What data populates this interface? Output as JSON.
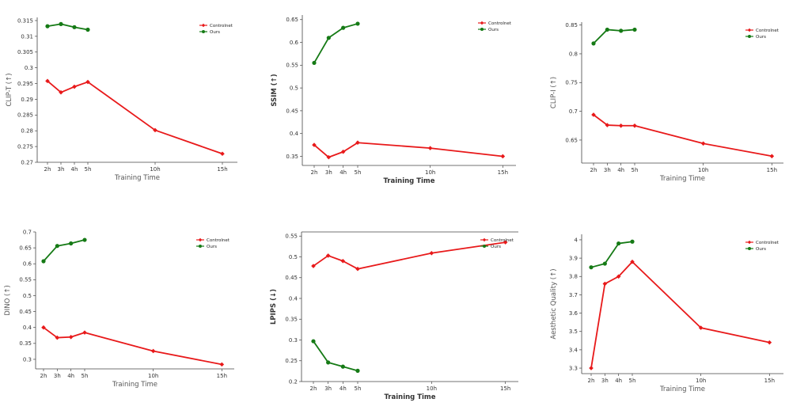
{
  "chart_data": [
    {
      "type": "line",
      "xlabel": "Training Time",
      "ylabel": "CLIP-T (↑)",
      "x": [
        "2h",
        "3h",
        "4h",
        "5h",
        "10h",
        "15h"
      ],
      "ylim": [
        0.27,
        0.316
      ],
      "yticks": [
        "0.27",
        "0.275",
        "0.28",
        "0.285",
        "0.29",
        "0.295",
        "0.3",
        "0.305",
        "0.31",
        "0.315"
      ],
      "legend": "top-right",
      "grid": false,
      "series": [
        {
          "name": "Controlnet",
          "color": "#e8191a",
          "values": [
            0.2958,
            0.2922,
            0.294,
            0.2955,
            0.2802,
            0.2727
          ]
        },
        {
          "name": "Ours",
          "color": "#157a15",
          "values": [
            0.3132,
            0.3139,
            0.3129,
            0.3121,
            null,
            null
          ]
        }
      ]
    },
    {
      "type": "line",
      "xlabel": "Training Time",
      "ylabel": "SSIM (↑)",
      "x": [
        "2h",
        "3h",
        "4h",
        "5h",
        "10h",
        "15h"
      ],
      "ylim": [
        0.33,
        0.66
      ],
      "yticks": [
        "0.35",
        "0.4",
        "0.45",
        "0.5",
        "0.55",
        "0.6",
        "0.65"
      ],
      "legend": "top-right",
      "grid": false,
      "series": [
        {
          "name": "Controlnet",
          "color": "#e8191a",
          "values": [
            0.375,
            0.348,
            0.36,
            0.38,
            0.368,
            0.35
          ]
        },
        {
          "name": "Ours",
          "color": "#157a15",
          "values": [
            0.555,
            0.61,
            0.632,
            0.641,
            null,
            null
          ]
        }
      ]
    },
    {
      "type": "line",
      "xlabel": "Training Time",
      "ylabel": "CLIP-I (↑)",
      "x": [
        "2h",
        "3h",
        "4h",
        "5h",
        "10h",
        "15h"
      ],
      "ylim": [
        0.61,
        0.855
      ],
      "yticks": [
        "0.65",
        "0.7",
        "0.75",
        "0.8",
        "0.85"
      ],
      "legend": "top-right",
      "grid": false,
      "series": [
        {
          "name": "Controlnet",
          "color": "#e8191a",
          "values": [
            0.694,
            0.676,
            0.675,
            0.675,
            0.644,
            0.622
          ]
        },
        {
          "name": "Ours",
          "color": "#157a15",
          "values": [
            0.818,
            0.842,
            0.84,
            0.842,
            null,
            null
          ]
        }
      ]
    },
    {
      "type": "line",
      "xlabel": "Training Time",
      "ylabel": "DINO (↑)",
      "x": [
        "2h",
        "3h",
        "4h",
        "5h",
        "10h",
        "15h"
      ],
      "ylim": [
        0.27,
        0.7
      ],
      "yticks": [
        "0.3",
        "0.35",
        "0.4",
        "0.45",
        "0.5",
        "0.55",
        "0.6",
        "0.65",
        "0.7"
      ],
      "legend": "top-right",
      "grid": false,
      "series": [
        {
          "name": "Controlnet",
          "color": "#e8191a",
          "values": [
            0.4,
            0.368,
            0.37,
            0.384,
            0.326,
            0.284
          ]
        },
        {
          "name": "Ours",
          "color": "#157a15",
          "values": [
            0.608,
            0.656,
            0.664,
            0.675,
            null,
            null
          ]
        }
      ]
    },
    {
      "type": "line",
      "xlabel": "Training Time",
      "ylabel": "LPIPS (↓)",
      "x": [
        "2h",
        "3h",
        "4h",
        "5h",
        "10h",
        "15h"
      ],
      "ylim": [
        0.2,
        0.56
      ],
      "yticks": [
        "0.2",
        "0.25",
        "0.3",
        "0.35",
        "0.4",
        "0.45",
        "0.5",
        "0.55"
      ],
      "legend": "top-right",
      "grid": false,
      "series": [
        {
          "name": "Controlnet",
          "color": "#e8191a",
          "values": [
            0.478,
            0.503,
            0.49,
            0.471,
            0.509,
            0.535
          ]
        },
        {
          "name": "Ours",
          "color": "#157a15",
          "values": [
            0.297,
            0.246,
            0.236,
            0.226,
            null,
            null
          ]
        }
      ]
    },
    {
      "type": "line",
      "xlabel": "Training Time",
      "ylabel": "Aesthetic Quality (↑)",
      "x": [
        "2h",
        "3h",
        "4h",
        "5h",
        "10h",
        "15h"
      ],
      "ylim": [
        3.27,
        4.03
      ],
      "yticks": [
        "3.3",
        "3.4",
        "3.5",
        "3.6",
        "3.7",
        "3.8",
        "3.9",
        "4"
      ],
      "legend": "top-right",
      "grid": false,
      "series": [
        {
          "name": "Controlnet",
          "color": "#e8191a",
          "values": [
            3.3,
            3.76,
            3.8,
            3.88,
            3.52,
            3.44
          ]
        },
        {
          "name": "Ours",
          "color": "#157a15",
          "values": [
            3.85,
            3.87,
            3.98,
            3.99,
            null,
            null
          ]
        }
      ]
    }
  ]
}
